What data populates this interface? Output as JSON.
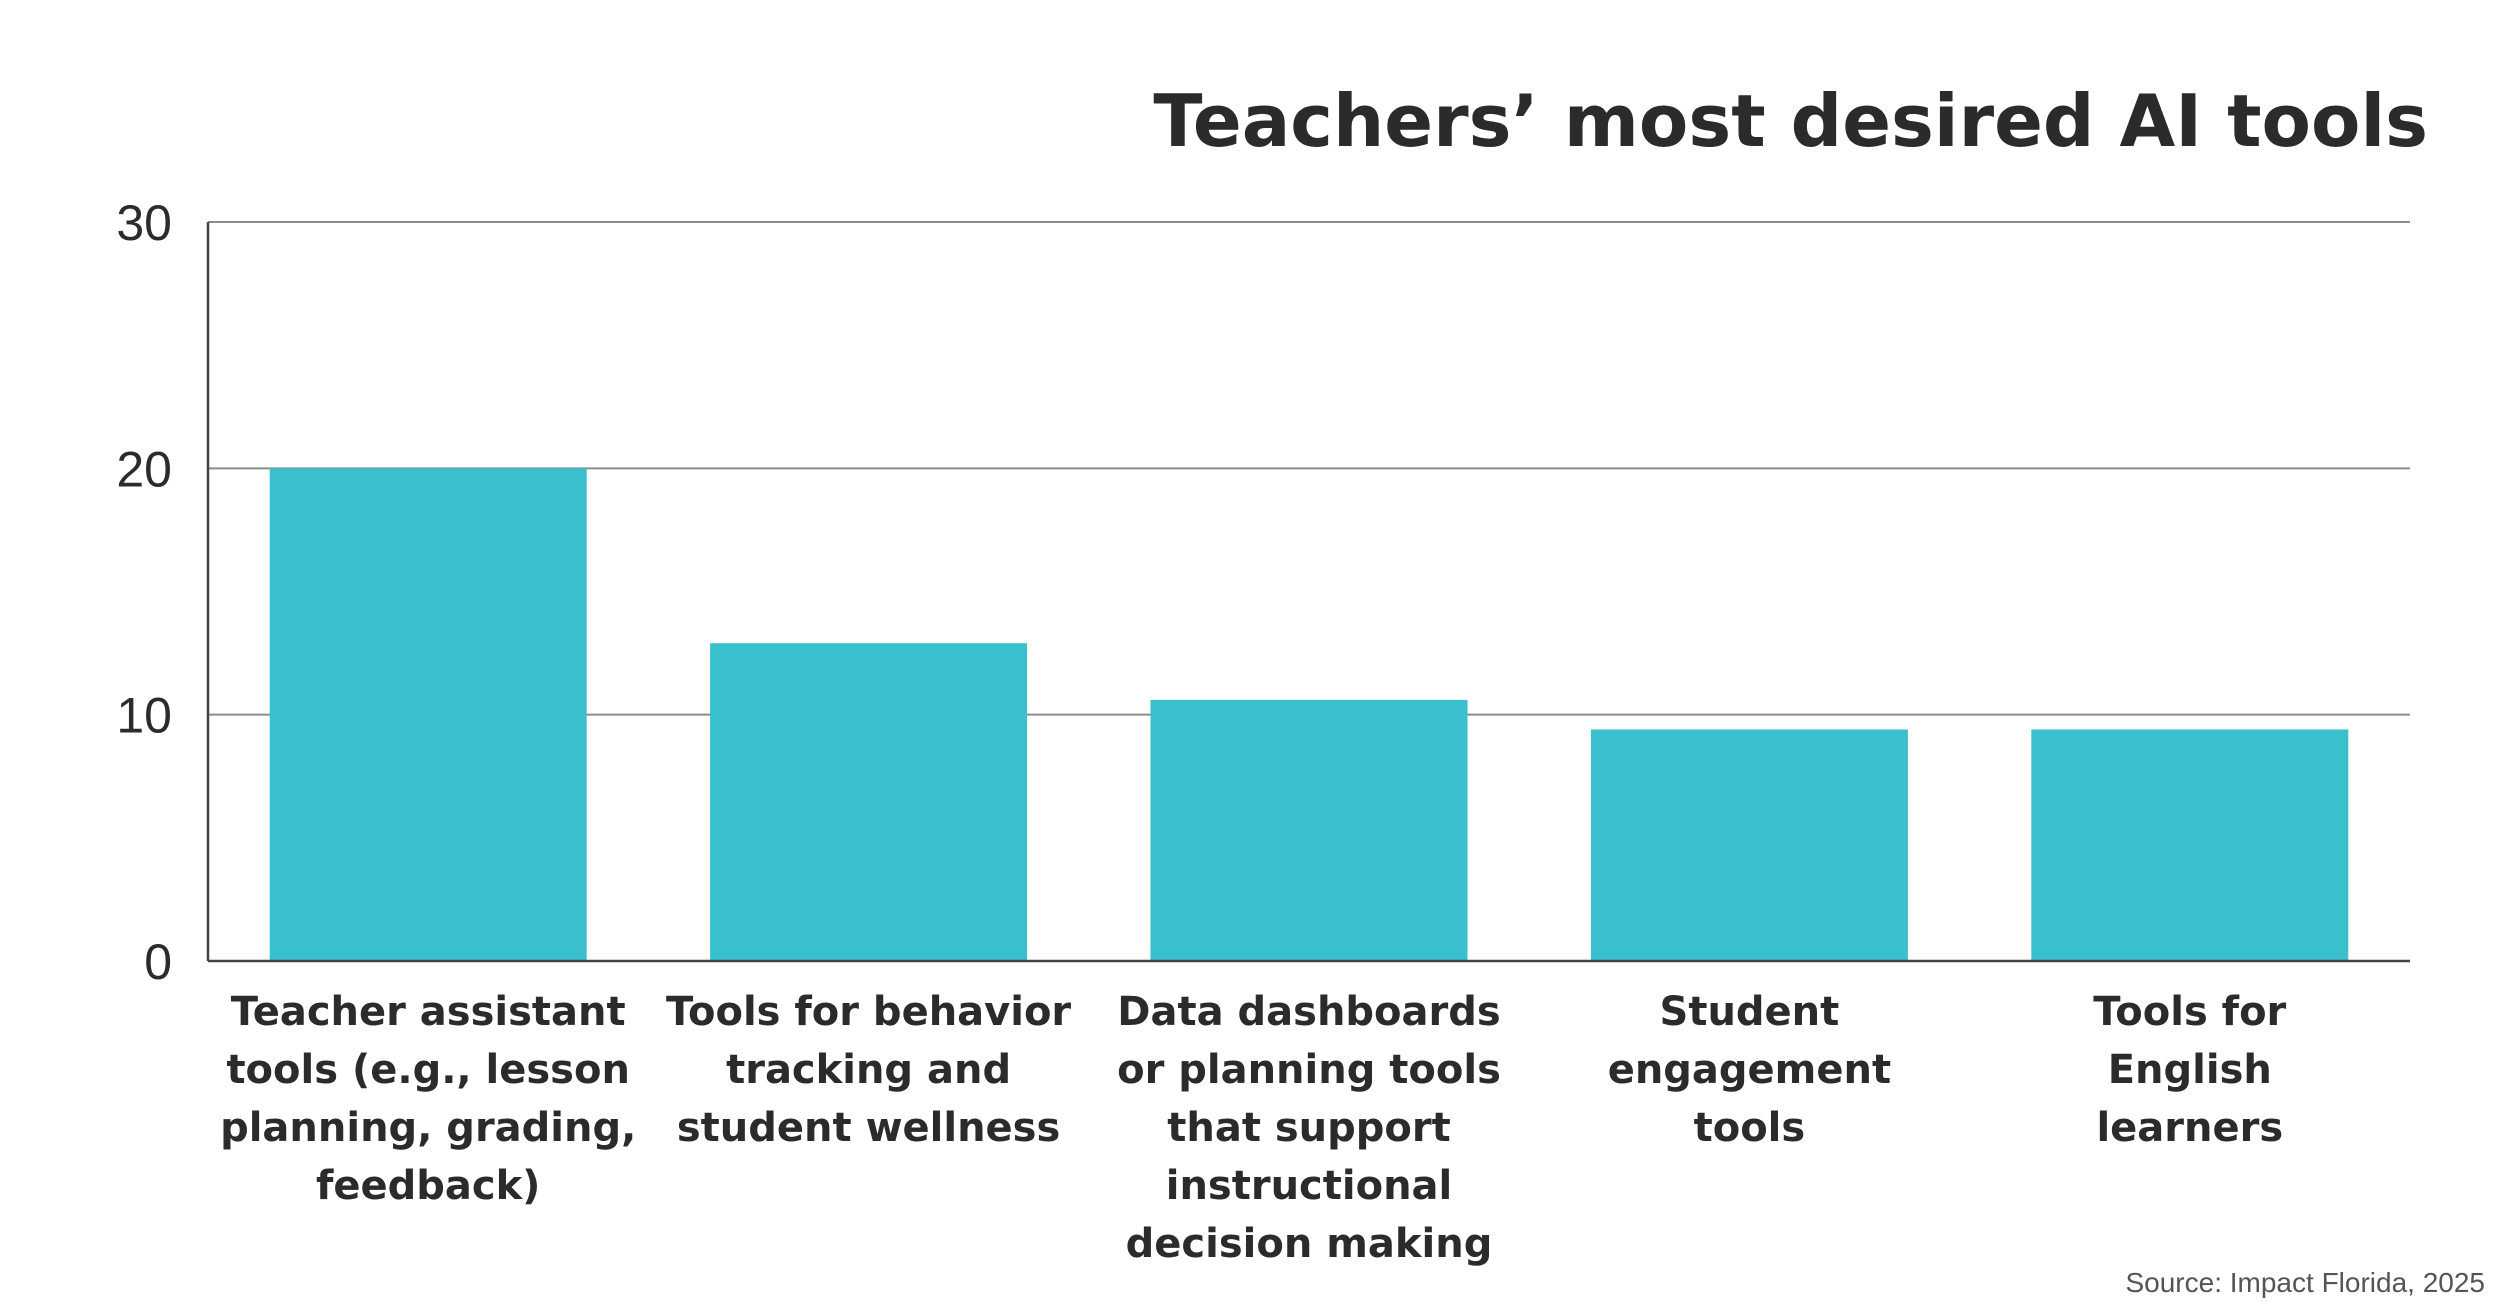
{
  "chart_data": {
    "type": "bar",
    "title": "Teachers’ most desired AI tools",
    "categories": [
      [
        "Teacher assistant",
        "tools (e.g., lesson",
        "planning, grading,",
        "feedback)"
      ],
      [
        "Tools for behavior",
        "tracking and",
        "student wellness"
      ],
      [
        "Data dashboards",
        "or planning tools",
        "that support",
        "instructional",
        "decision making"
      ],
      [
        "Student",
        "engagement",
        "tools"
      ],
      [
        "Tools for",
        "English",
        "learners"
      ]
    ],
    "values": [
      20,
      12.9,
      10.6,
      9.4,
      9.4
    ],
    "ylim": [
      0,
      30
    ],
    "yticks": [
      0,
      10,
      20,
      30
    ],
    "grid": true,
    "bar_color": "#3ac0cc",
    "source": "Source: Impact Florida, 2025"
  }
}
